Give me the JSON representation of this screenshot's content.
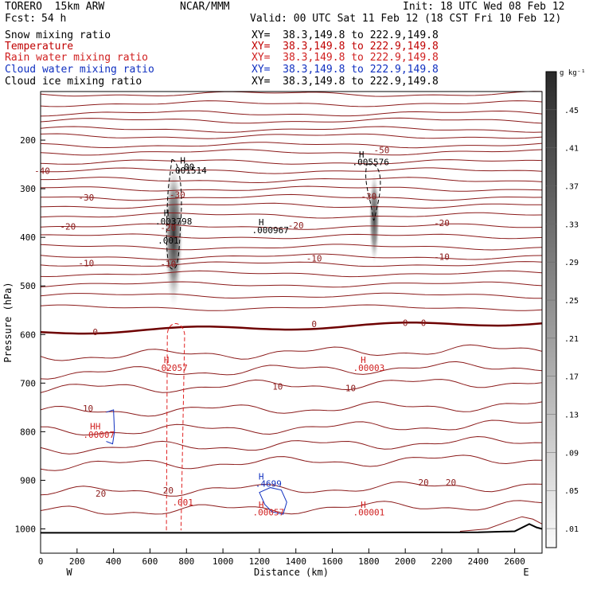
{
  "header": {
    "model": "TORERO  15km ARW",
    "org": "NCAR/MMM",
    "init": "Init: 18 UTC Wed 08 Feb 12",
    "fcst_label": "Fcst:",
    "fcst_value": "54 h",
    "valid": "Valid: 00 UTC Sat 11 Feb 12 (18 CST Fri 10 Feb 12)"
  },
  "fields": [
    {
      "name": "Snow mixing ratio",
      "color": "#000000",
      "xy": "XY=  38.3,149.8 to 222.9,149.8"
    },
    {
      "name": "Temperature",
      "color": "#c00000",
      "xy": "XY=  38.3,149.8 to 222.9,149.8"
    },
    {
      "name": "Rain water mixing ratio",
      "color": "#d02020",
      "xy": "XY=  38.3,149.8 to 222.9,149.8"
    },
    {
      "name": "Cloud water mixing ratio",
      "color": "#1030c0",
      "xy": "XY=  38.3,149.8 to 222.9,149.8"
    },
    {
      "name": "Cloud ice mixing ratio",
      "color": "#000000",
      "xy": "XY=  38.3,149.8 to 222.9,149.8"
    }
  ],
  "colors": {
    "temperature": "#8b1a1a",
    "zero_isotherm": "#6e0000",
    "rain": "#e02020",
    "cloud_water": "#1030c0",
    "ice": "#000000",
    "terrain": "#000000"
  },
  "chart_data": {
    "type": "contour",
    "xlabel": "Distance (km)",
    "ylabel": "Pressure (hPa)",
    "xlim": [
      0,
      2750
    ],
    "ylim": [
      1050,
      100
    ],
    "x_ticks": [
      0,
      200,
      400,
      600,
      800,
      1000,
      1200,
      1400,
      1600,
      1800,
      2000,
      2200,
      2400,
      2600
    ],
    "y_ticks": [
      200,
      300,
      400,
      500,
      600,
      700,
      800,
      900,
      1000
    ],
    "x_end_labels": {
      "left": "W",
      "right": "E"
    },
    "colorbar": {
      "unit": "g kg⁻¹",
      "labels": [
        ".45",
        ".41",
        ".37",
        ".33",
        ".29",
        ".25",
        ".21",
        ".17",
        ".13",
        ".09",
        ".05",
        ".01"
      ]
    },
    "temperature_contours": [
      {
        "t": -40,
        "label": "-40",
        "label_at": [
          {
            "x": -20,
            "p": 263
          }
        ]
      },
      {
        "t": -30,
        "label": "-30",
        "label_at": [
          {
            "x": 250,
            "p": 318
          },
          {
            "x": 750,
            "p": 312
          },
          {
            "x": 1800,
            "p": 315
          }
        ]
      },
      {
        "t": -20,
        "label": "-20",
        "label_at": [
          {
            "x": 150,
            "p": 378
          },
          {
            "x": 700,
            "p": 380
          },
          {
            "x": 1400,
            "p": 375
          },
          {
            "x": 2200,
            "p": 370
          }
        ]
      },
      {
        "t": -10,
        "label": "-10",
        "label_at": [
          {
            "x": 250,
            "p": 453
          },
          {
            "x": 700,
            "p": 455
          },
          {
            "x": 1500,
            "p": 443
          },
          {
            "x": 2200,
            "p": 440
          }
        ]
      },
      {
        "t": 0,
        "label": "0",
        "label_at": [
          {
            "x": 300,
            "p": 595
          },
          {
            "x": 1500,
            "p": 578
          },
          {
            "x": 2000,
            "p": 576
          },
          {
            "x": 2100,
            "p": 576
          }
        ]
      },
      {
        "t": 10,
        "label": "10",
        "label_at": [
          {
            "x": 260,
            "p": 752
          },
          {
            "x": 1300,
            "p": 707
          },
          {
            "x": 1700,
            "p": 710
          }
        ]
      },
      {
        "t": 20,
        "label": "20",
        "label_at": [
          {
            "x": 330,
            "p": 927
          },
          {
            "x": 700,
            "p": 921
          },
          {
            "x": 2100,
            "p": 904
          },
          {
            "x": 2250,
            "p": 904
          }
        ]
      },
      {
        "t": -50,
        "label": "-50",
        "label_at": [
          {
            "x": 1870,
            "p": 220
          }
        ]
      }
    ],
    "annotations": [
      {
        "text": "H",
        "x": 780,
        "p": 242,
        "color": "#000000"
      },
      {
        "text": ".00",
        "x": 800,
        "p": 255,
        "color": "#000000"
      },
      {
        "text": ".001514",
        "x": 810,
        "p": 262,
        "color": "#000000"
      },
      {
        "text": "H",
        "x": 690,
        "p": 350,
        "color": "#000000"
      },
      {
        "text": ".003798",
        "x": 730,
        "p": 367,
        "color": "#000000"
      },
      {
        "text": ".001",
        "x": 700,
        "p": 406,
        "color": "#000000"
      },
      {
        "text": "H",
        "x": 1210,
        "p": 369,
        "color": "#000000"
      },
      {
        "text": ".000967",
        "x": 1260,
        "p": 385,
        "color": "#000000"
      },
      {
        "text": "H",
        "x": 1760,
        "p": 229,
        "color": "#000000"
      },
      {
        "text": ".005576",
        "x": 1810,
        "p": 245,
        "color": "#000000"
      },
      {
        "text": "H",
        "x": 690,
        "p": 652,
        "color": "#d02020"
      },
      {
        "text": ".02057",
        "x": 720,
        "p": 668,
        "color": "#d02020"
      },
      {
        "text": "H",
        "x": 1770,
        "p": 652,
        "color": "#d02020"
      },
      {
        "text": ".00003",
        "x": 1800,
        "p": 668,
        "color": "#d02020"
      },
      {
        "text": "HH",
        "x": 300,
        "p": 789,
        "color": "#d02020"
      },
      {
        "text": ".00007",
        "x": 320,
        "p": 806,
        "color": "#d02020"
      },
      {
        "text": "H",
        "x": 1210,
        "p": 892,
        "color": "#1030c0"
      },
      {
        "text": ".4699",
        "x": 1250,
        "p": 907,
        "color": "#1030c0"
      },
      {
        "text": "H",
        "x": 1210,
        "p": 950,
        "color": "#d02020"
      },
      {
        "text": ".00057",
        "x": 1250,
        "p": 966,
        "color": "#d02020"
      },
      {
        "text": ".001",
        "x": 780,
        "p": 945,
        "color": "#d02020"
      },
      {
        "text": "H",
        "x": 1770,
        "p": 950,
        "color": "#d02020"
      },
      {
        "text": ".00001",
        "x": 1800,
        "p": 966,
        "color": "#d02020"
      }
    ]
  }
}
